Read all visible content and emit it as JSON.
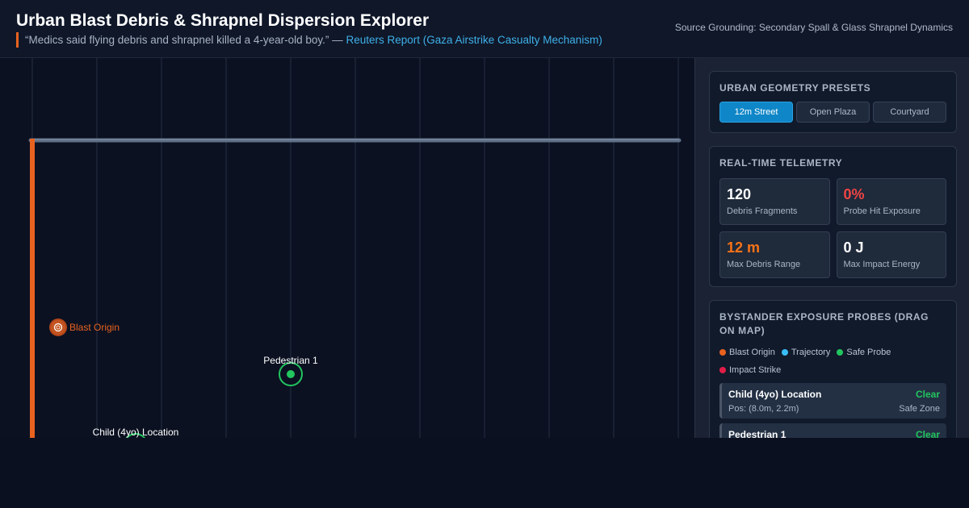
{
  "header": {
    "title": "Urban Blast Debris & Shrapnel Dispersion Explorer",
    "quote": "“Medics said flying debris and shrapnel killed a 4-year-old boy.” —",
    "quote_link": "Reuters Report (Gaza Airstrike Casualty Mechanism)",
    "source": "Source Grounding: Secondary Spall & Glass Shrapnel Dynamics"
  },
  "map": {
    "blast_label": "Blast Origin",
    "probe1_label": "Pedestrian 1",
    "child_label": "Child (4yo) Location",
    "colors": {
      "wall": "#e8621f",
      "barrier": "#5d6e85",
      "blast": "#e8621f",
      "safe": "#22c55e"
    }
  },
  "presets": {
    "title": "Urban Geometry Presets",
    "items": [
      "12m Street",
      "Open Plaza",
      "Courtyard"
    ],
    "active": "12m Street"
  },
  "telemetry": {
    "title": "Real-Time Telemetry",
    "stats": [
      {
        "value": "120",
        "label": "Debris Fragments",
        "color": "#ffffff"
      },
      {
        "value": "0%",
        "label": "Probe Hit Exposure",
        "color": "#ef4444"
      },
      {
        "value": "12 m",
        "label": "Max Debris Range",
        "color": "#f97316"
      },
      {
        "value": "0 J",
        "label": "Max Impact Energy",
        "color": "#ffffff"
      }
    ]
  },
  "probes": {
    "title": "Bystander Exposure Probes (Drag on Map)",
    "legend": [
      {
        "label": "Blast Origin",
        "color": "#e8621f"
      },
      {
        "label": "Trajectory",
        "color": "#38bdf8"
      },
      {
        "label": "Safe Probe",
        "color": "#22c55e"
      },
      {
        "label": "Impact Strike",
        "color": "#e11d48"
      }
    ],
    "items": [
      {
        "name": "Child (4yo) Location",
        "status": "Clear",
        "pos": "Pos: (8.0m, 2.2m)",
        "zone": "Safe Zone"
      },
      {
        "name": "Pedestrian 1",
        "status": "Clear",
        "pos": "",
        "zone": ""
      }
    ]
  }
}
